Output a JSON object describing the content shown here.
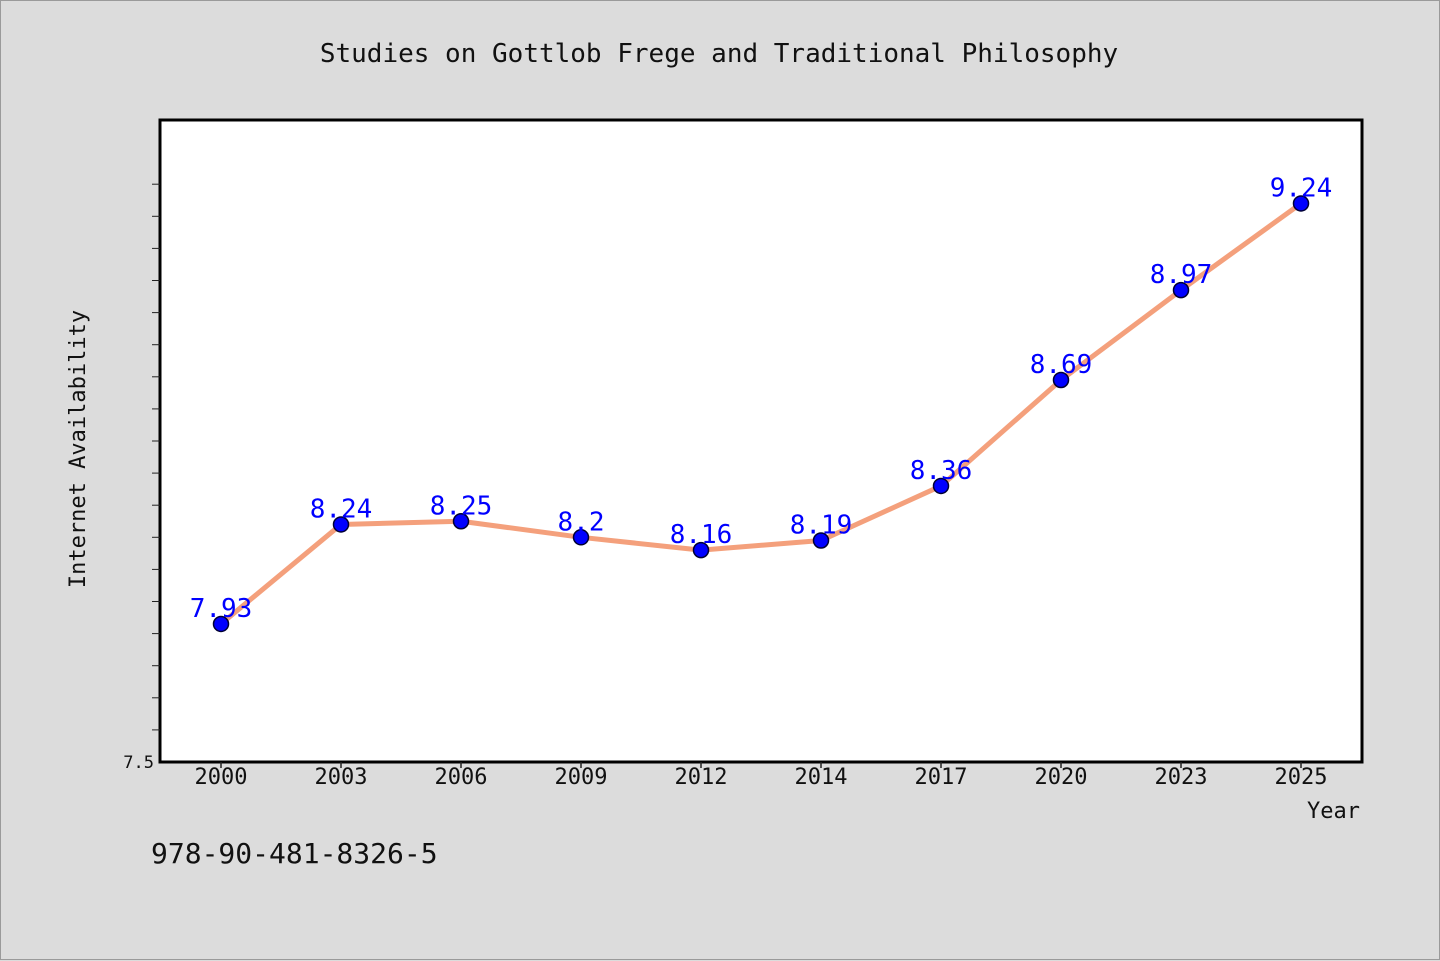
{
  "chart_data": {
    "type": "line",
    "title": "Studies on Gottlob Frege and Traditional Philosophy",
    "xlabel": "Year",
    "ylabel": "Internet Availability",
    "categories": [
      "2000",
      "2003",
      "2006",
      "2009",
      "2012",
      "2014",
      "2017",
      "2020",
      "2023",
      "2025"
    ],
    "series": [
      {
        "values": [
          7.93,
          8.24,
          8.25,
          8.2,
          8.16,
          8.19,
          8.36,
          8.69,
          8.97,
          9.24
        ],
        "data_labels": [
          "7.93",
          "8.24",
          "8.25",
          "8.2",
          "8.16",
          "8.19",
          "8.36",
          "8.69",
          "8.97",
          "9.24"
        ]
      }
    ],
    "ylim": [
      7.5,
      9.5
    ],
    "y_tick_label": "7.5",
    "grid": false,
    "legend": "none",
    "colors": {
      "line": "#f4a07c",
      "marker": "#0000ff",
      "marker_edge": "#000033",
      "data_label": "#0000ff"
    }
  },
  "footer": {
    "isbn": "978-90-481-8326-5"
  }
}
